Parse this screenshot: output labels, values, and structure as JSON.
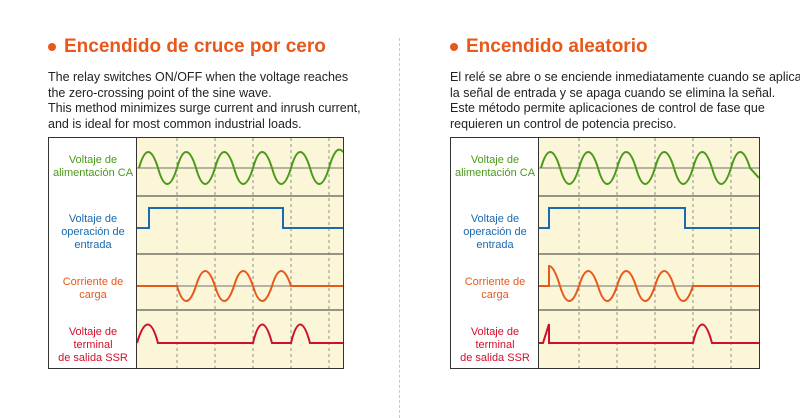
{
  "colors": {
    "accent": "#e8581a",
    "supply": "#4a9a1a",
    "input": "#1a6ab0",
    "load": "#e8581a",
    "output": "#d0102a",
    "wave_background": "#fbf6d8"
  },
  "left": {
    "title": "Encendido de cruce por cero",
    "description": [
      "The relay switches ON/OFF when the voltage reaches",
      "the zero-crossing point of the sine wave.",
      "This method minimizes surge current and inrush current,",
      "and is ideal for most common industrial loads."
    ],
    "labels": {
      "supply": [
        "Voltaje de",
        "alimentación CA"
      ],
      "input": [
        "Voltaje de",
        "operación de",
        "entrada"
      ],
      "load": [
        "Corriente de",
        "carga"
      ],
      "output": [
        "Voltaje de terminal",
        "de salida SSR"
      ]
    }
  },
  "right": {
    "title": "Encendido aleatorio",
    "description": [
      "El relé se abre o se enciende inmediatamente cuando se aplica",
      "la señal de entrada y se apaga cuando se elimina la señal.",
      "Este método permite aplicaciones de control de fase que",
      "requieren un control de potencia preciso."
    ],
    "labels": {
      "supply": [
        "Voltaje de",
        "alimentación CA"
      ],
      "input": [
        "Voltaje de",
        "operación de",
        "entrada"
      ],
      "load": [
        "Corriente de",
        "carga"
      ],
      "output": [
        "Voltaje de terminal",
        "de salida SSR"
      ]
    }
  }
}
